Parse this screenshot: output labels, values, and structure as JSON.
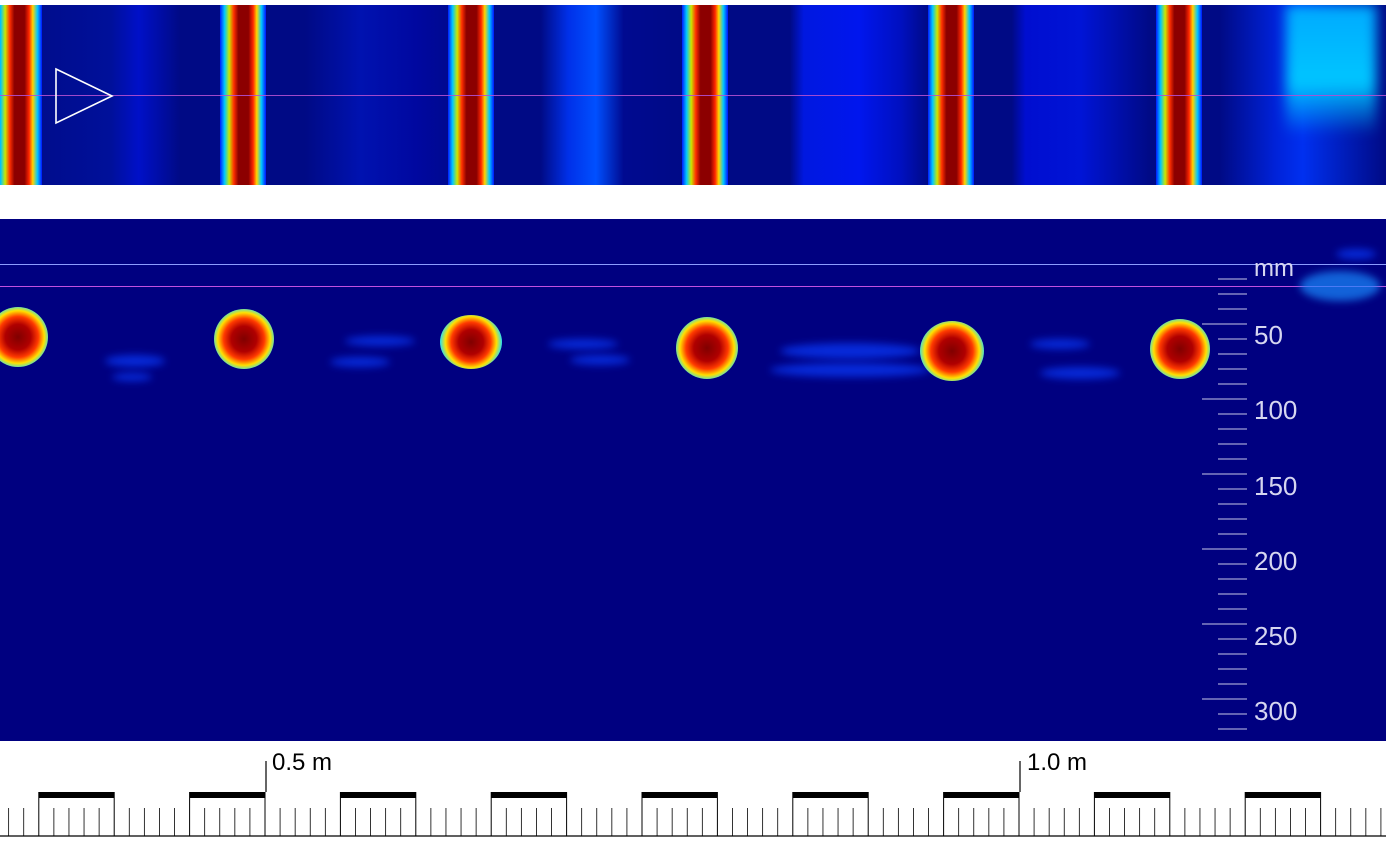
{
  "plan_view": {
    "play_icon": "play-triangle-icon",
    "colormap": [
      "#000080",
      "#0014ff",
      "#00c8ff",
      "#ffe000",
      "#ff3000",
      "#800000"
    ]
  },
  "section_view": {
    "depth_axis": {
      "unit": "mm",
      "labels": [
        "50",
        "100",
        "150",
        "200",
        "250",
        "300"
      ]
    }
  },
  "ruler": {
    "labels": [
      "0.5 m",
      "1.0 m"
    ]
  }
}
